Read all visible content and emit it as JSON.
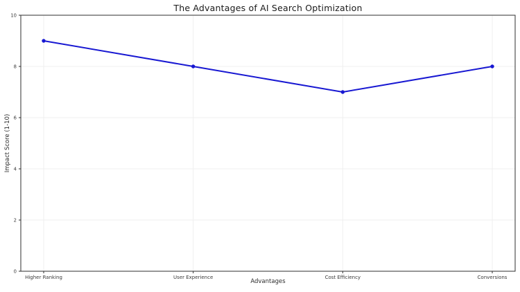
{
  "figure": {
    "background": "#ffffff"
  },
  "chart_data": {
    "type": "line",
    "title": "The Advantages of AI Search Optimization",
    "xlabel": "Advantages",
    "ylabel": "Impact Score (1-10)",
    "categories": [
      "Higher Ranking",
      "User Experience",
      "Cost Efficiency",
      "Conversions"
    ],
    "values": [
      9,
      8,
      7,
      8
    ],
    "ylim": [
      0,
      10
    ],
    "yticks": [
      0,
      2,
      4,
      6,
      8,
      10
    ],
    "grid": true,
    "legend": "none",
    "line_color": "#1818d2",
    "marker": "dot",
    "grid_color": "#efefef",
    "spine_color": "#2e2e2e",
    "tick_label_color": "#3a3a3a",
    "plot_background": "#ffffff"
  }
}
